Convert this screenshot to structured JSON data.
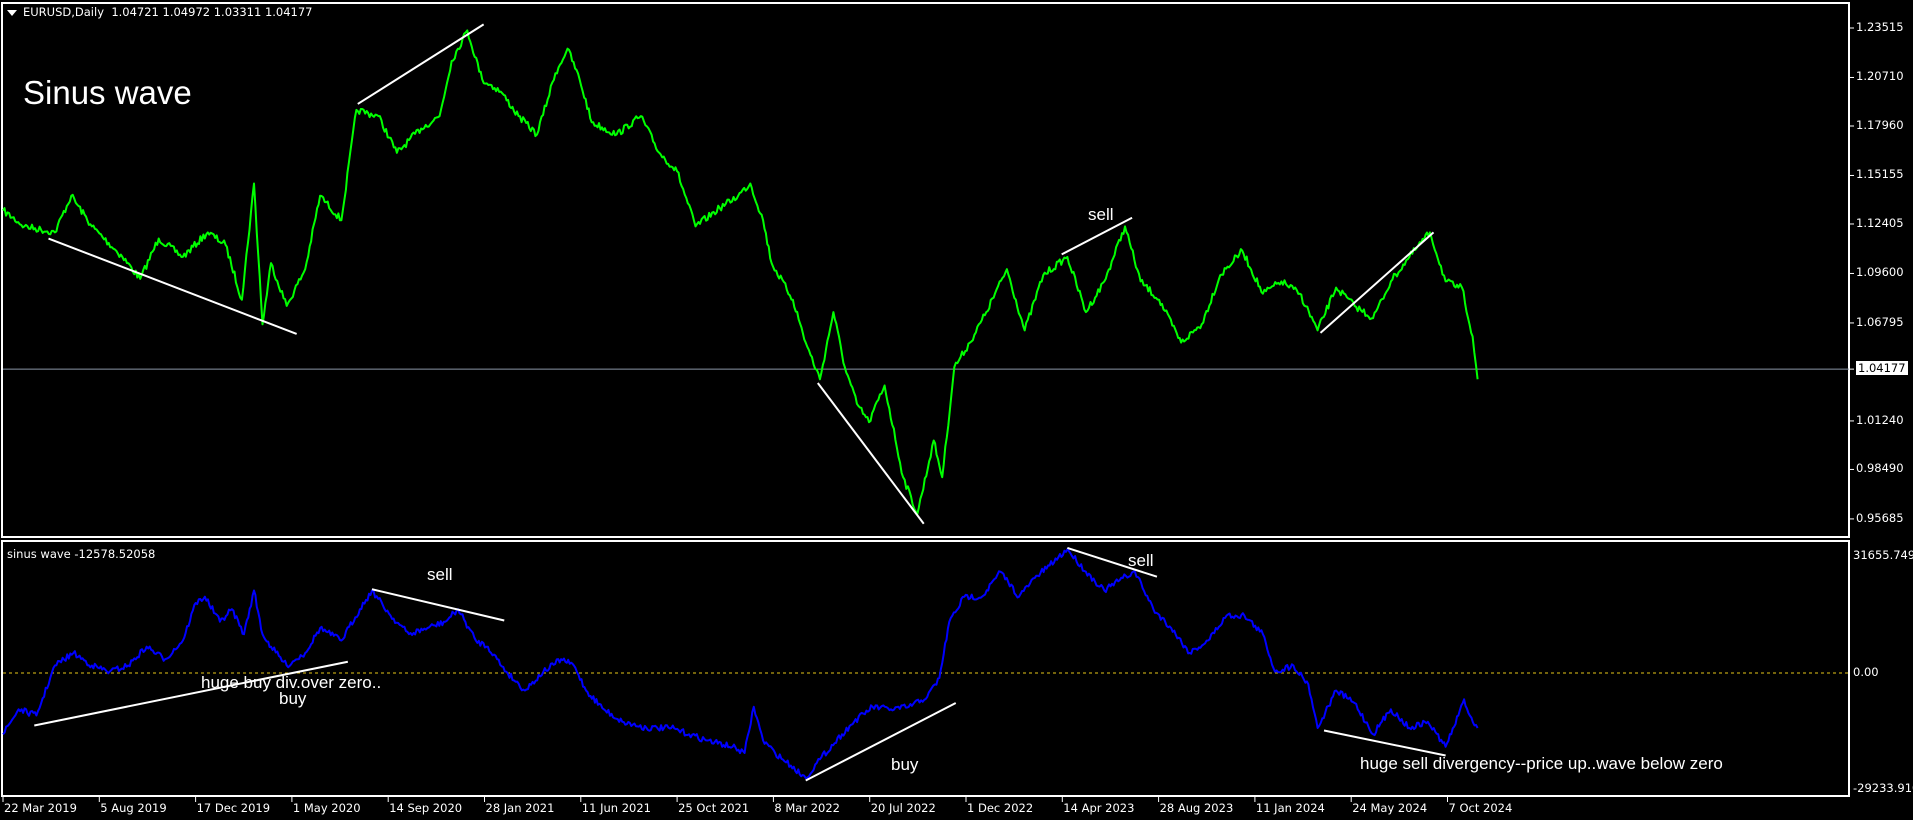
{
  "header": {
    "symbol": "EURUSD,Daily",
    "ohlc": "1.04721 1.04972 1.03311 1.04177"
  },
  "indicator_header": "sinus wave -12578.52058",
  "colors": {
    "background": "#000000",
    "price": "#00ff00",
    "indicator": "#0000ff",
    "trendline": "#ffffff",
    "zero_line": "#e6c619",
    "price_line": "#8a96a6"
  },
  "chart_data": [
    {
      "type": "line",
      "title": "Sinus wave",
      "ylim": [
        0.95685,
        1.23515
      ],
      "current_price": "1.04177",
      "y_ticks": [
        "1.23515",
        "1.20710",
        "1.17960",
        "1.15155",
        "1.12405",
        "1.09600",
        "1.06795",
        "1.04177",
        "1.01240",
        "0.98490",
        "0.95685"
      ],
      "series": [
        {
          "points": [
            [
              "2019-03-22",
              1.1317
            ],
            [
              "2019-04-21",
              1.1227
            ],
            [
              "2019-06-03",
              1.1193
            ],
            [
              "2019-06-26",
              1.1401
            ],
            [
              "2019-07-25",
              1.1227
            ],
            [
              "2019-09-06",
              1.1054
            ],
            [
              "2019-10-01",
              1.0929
            ],
            [
              "2019-10-27",
              1.1158
            ],
            [
              "2019-11-30",
              1.1054
            ],
            [
              "2020-01-04",
              1.1193
            ],
            [
              "2020-01-29",
              1.1123
            ],
            [
              "2020-02-21",
              1.0811
            ],
            [
              "2020-03-09",
              1.147
            ],
            [
              "2020-03-21",
              1.0672
            ],
            [
              "2020-04-02",
              1.1019
            ],
            [
              "2020-04-24",
              1.0776
            ],
            [
              "2020-05-20",
              1.0984
            ],
            [
              "2020-06-10",
              1.1401
            ],
            [
              "2020-07-10",
              1.1262
            ],
            [
              "2020-07-31",
              1.1887
            ],
            [
              "2020-08-31",
              1.1852
            ],
            [
              "2020-09-26",
              1.1644
            ],
            [
              "2020-10-30",
              1.1782
            ],
            [
              "2020-11-25",
              1.1852
            ],
            [
              "2020-12-12",
              1.2164
            ],
            [
              "2021-01-03",
              1.2338
            ],
            [
              "2021-01-24",
              1.206
            ],
            [
              "2021-02-19",
              1.1991
            ],
            [
              "2021-03-16",
              1.1852
            ],
            [
              "2021-04-11",
              1.1748
            ],
            [
              "2021-05-07",
              1.2095
            ],
            [
              "2021-05-24",
              1.2234
            ],
            [
              "2021-06-10",
              1.206
            ],
            [
              "2021-06-27",
              1.1817
            ],
            [
              "2021-08-01",
              1.1748
            ],
            [
              "2021-09-04",
              1.1852
            ],
            [
              "2021-09-30",
              1.1644
            ],
            [
              "2021-10-25",
              1.154
            ],
            [
              "2021-11-20",
              1.1227
            ],
            [
              "2021-12-24",
              1.1331
            ],
            [
              "2022-01-19",
              1.1401
            ],
            [
              "2022-02-05",
              1.147
            ],
            [
              "2022-02-23",
              1.1262
            ],
            [
              "2022-03-07",
              1.1019
            ],
            [
              "2022-04-06",
              1.0811
            ],
            [
              "2022-04-24",
              1.0568
            ],
            [
              "2022-05-14",
              1.036
            ],
            [
              "2022-06-02",
              1.0741
            ],
            [
              "2022-06-18",
              1.0429
            ],
            [
              "2022-07-05",
              1.0221
            ],
            [
              "2022-07-22",
              1.0117
            ],
            [
              "2022-08-13",
              1.0325
            ],
            [
              "2022-09-08",
              0.9805
            ],
            [
              "2022-09-28",
              0.9596
            ],
            [
              "2022-10-21",
              1.0013
            ],
            [
              "2022-11-02",
              0.9805
            ],
            [
              "2022-11-19",
              1.0429
            ],
            [
              "2022-12-11",
              1.0568
            ],
            [
              "2023-01-03",
              1.0741
            ],
            [
              "2023-02-01",
              1.0984
            ],
            [
              "2023-02-26",
              1.0637
            ],
            [
              "2023-03-24",
              1.095
            ],
            [
              "2023-04-27",
              1.1054
            ],
            [
              "2023-05-23",
              1.0741
            ],
            [
              "2023-06-18",
              1.0915
            ],
            [
              "2023-07-17",
              1.1227
            ],
            [
              "2023-08-08",
              1.0915
            ],
            [
              "2023-09-03",
              1.0811
            ],
            [
              "2023-10-04",
              1.0568
            ],
            [
              "2023-11-02",
              1.0672
            ],
            [
              "2023-11-28",
              1.095
            ],
            [
              "2023-12-29",
              1.1089
            ],
            [
              "2024-01-27",
              1.0845
            ],
            [
              "2024-02-22",
              1.0915
            ],
            [
              "2024-03-19",
              1.0845
            ],
            [
              "2024-04-13",
              1.0637
            ],
            [
              "2024-05-09",
              1.088
            ],
            [
              "2024-06-04",
              1.0776
            ],
            [
              "2024-06-30",
              1.0707
            ],
            [
              "2024-07-25",
              1.0915
            ],
            [
              "2024-08-20",
              1.1054
            ],
            [
              "2024-09-18",
              1.1193
            ],
            [
              "2024-10-10",
              1.0915
            ],
            [
              "2024-10-28",
              1.088
            ],
            [
              "2024-11-02",
              1.088
            ],
            [
              "2024-11-17",
              1.0603
            ],
            [
              "2024-11-24",
              1.036
            ]
          ]
        }
      ],
      "trendlines": [
        [
          [
            "2019-05-25",
            1.1158
          ],
          [
            "2020-05-08",
            1.0617
          ]
        ],
        [
          [
            "2020-08-02",
            1.1921
          ],
          [
            "2021-01-26",
            1.2372
          ]
        ],
        [
          [
            "2022-05-11",
            1.0339
          ],
          [
            "2022-10-07",
            0.9541
          ]
        ],
        [
          [
            "2023-04-19",
            1.1068
          ],
          [
            "2023-07-27",
            1.1276
          ]
        ],
        [
          [
            "2024-04-17",
            1.0623
          ],
          [
            "2024-09-23",
            1.1193
          ]
        ]
      ],
      "annotations": [
        "sell"
      ]
    },
    {
      "type": "line",
      "title": "sinus wave",
      "ylim": [
        -29233.91,
        31655.749
      ],
      "y_ticks": [
        "31655.749",
        "0.00",
        "-29233.910"
      ],
      "series": [
        {
          "points": [
            [
              "2019-03-22",
              -15509
            ],
            [
              "2019-04-13",
              -9179
            ],
            [
              "2019-05-08",
              -10761
            ],
            [
              "2019-06-03",
              1899
            ],
            [
              "2019-06-29",
              5064
            ],
            [
              "2019-07-25",
              1899
            ],
            [
              "2019-08-19",
              317
            ],
            [
              "2019-09-14",
              1899
            ],
            [
              "2019-10-10",
              6647
            ],
            [
              "2019-11-05",
              3482
            ],
            [
              "2019-11-30",
              8229
            ],
            [
              "2019-12-18",
              17724
            ],
            [
              "2019-12-31",
              19307
            ],
            [
              "2020-01-21",
              12977
            ],
            [
              "2020-02-07",
              16142
            ],
            [
              "2020-02-24",
              9812
            ],
            [
              "2020-03-09",
              20889
            ],
            [
              "2020-03-21",
              9812
            ],
            [
              "2020-04-02",
              6647
            ],
            [
              "2020-04-24",
              1899
            ],
            [
              "2020-05-20",
              5064
            ],
            [
              "2020-06-10",
              11394
            ],
            [
              "2020-07-10",
              8229
            ],
            [
              "2020-08-05",
              16142
            ],
            [
              "2020-08-22",
              20889
            ],
            [
              "2020-09-17",
              14559
            ],
            [
              "2020-10-13",
              9812
            ],
            [
              "2020-11-08",
              11394
            ],
            [
              "2020-12-03",
              12977
            ],
            [
              "2020-12-21",
              16142
            ],
            [
              "2021-01-15",
              8229
            ],
            [
              "2021-02-01",
              6647
            ],
            [
              "2021-02-27",
              317
            ],
            [
              "2021-03-25",
              -4431
            ],
            [
              "2021-04-20",
              317
            ],
            [
              "2021-05-15",
              3482
            ],
            [
              "2021-06-02",
              1899
            ],
            [
              "2021-06-19",
              -4431
            ],
            [
              "2021-07-14",
              -9179
            ],
            [
              "2021-08-09",
              -12344
            ],
            [
              "2021-09-12",
              -13926
            ],
            [
              "2021-10-17",
              -13926
            ],
            [
              "2021-11-11",
              -15509
            ],
            [
              "2021-12-07",
              -17091
            ],
            [
              "2022-01-11",
              -18674
            ],
            [
              "2022-01-28",
              -20256
            ],
            [
              "2022-02-10",
              -8546
            ],
            [
              "2022-02-23",
              -17091
            ],
            [
              "2022-03-12",
              -20256
            ],
            [
              "2022-04-03",
              -23421
            ],
            [
              "2022-04-24",
              -26586
            ],
            [
              "2022-05-14",
              -21839
            ],
            [
              "2022-06-14",
              -15509
            ],
            [
              "2022-07-01",
              -12344
            ],
            [
              "2022-07-27",
              -8546
            ],
            [
              "2022-08-22",
              -9179
            ],
            [
              "2022-09-16",
              -8546
            ],
            [
              "2022-10-12",
              -6014
            ],
            [
              "2022-10-29",
              -1266
            ],
            [
              "2022-11-12",
              12977
            ],
            [
              "2022-12-03",
              19307
            ],
            [
              "2022-12-28",
              19307
            ],
            [
              "2023-01-23",
              25637
            ],
            [
              "2023-02-18",
              19307
            ],
            [
              "2023-03-12",
              24054
            ],
            [
              "2023-04-02",
              27219
            ],
            [
              "2023-04-27",
              31334
            ],
            [
              "2023-05-23",
              25637
            ],
            [
              "2023-06-18",
              20889
            ],
            [
              "2023-07-14",
              24054
            ],
            [
              "2023-07-31",
              25637
            ],
            [
              "2023-08-26",
              16142
            ],
            [
              "2023-09-20",
              11394
            ],
            [
              "2023-10-16",
              5064
            ],
            [
              "2023-11-11",
              8229
            ],
            [
              "2023-12-07",
              14559
            ],
            [
              "2024-01-01",
              14559
            ],
            [
              "2024-01-27",
              9812
            ],
            [
              "2024-02-13",
              317
            ],
            [
              "2024-03-10",
              1899
            ],
            [
              "2024-03-31",
              -2849
            ],
            [
              "2024-04-13",
              -13926
            ],
            [
              "2024-05-09",
              -4431
            ],
            [
              "2024-06-04",
              -7596
            ],
            [
              "2024-06-30",
              -15509
            ],
            [
              "2024-07-25",
              -9179
            ],
            [
              "2024-08-20",
              -13926
            ],
            [
              "2024-09-15",
              -12344
            ],
            [
              "2024-10-10",
              -18674
            ],
            [
              "2024-10-28",
              -10761
            ],
            [
              "2024-11-05",
              -6647
            ],
            [
              "2024-11-13",
              -10761
            ],
            [
              "2024-11-24",
              -13926
            ]
          ]
        }
      ],
      "zero_line": 0,
      "trendlines": [
        [
          [
            "2019-05-05",
            -13293
          ],
          [
            "2020-07-19",
            2849
          ]
        ],
        [
          [
            "2020-08-22",
            21206
          ],
          [
            "2021-02-24",
            13293
          ]
        ],
        [
          [
            "2022-04-24",
            -27219
          ],
          [
            "2022-11-21",
            -7596
          ]
        ],
        [
          [
            "2023-04-27",
            31650
          ],
          [
            "2023-08-31",
            24371
          ]
        ],
        [
          [
            "2024-04-22",
            -14559
          ],
          [
            "2024-10-10",
            -20889
          ]
        ]
      ],
      "annotations": [
        "sell",
        "huge buy div.over zero..",
        "buy",
        "buy",
        "sell",
        "huge sell divergency--price up..wave below zero"
      ]
    }
  ],
  "x_ticks": [
    "22 Mar 2019",
    "5 Aug 2019",
    "17 Dec 2019",
    "1 May 2020",
    "14 Sep 2020",
    "28 Jan 2021",
    "11 Jun 2021",
    "25 Oct 2021",
    "8 Mar 2022",
    "20 Jul 2022",
    "1 Dec 2022",
    "14 Apr 2023",
    "28 Aug 2023",
    "11 Jan 2024",
    "24 May 2024",
    "7 Oct 2024"
  ]
}
